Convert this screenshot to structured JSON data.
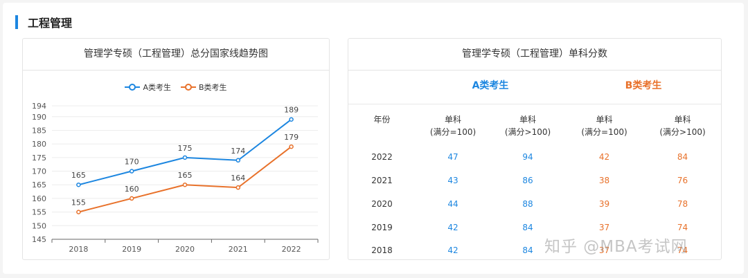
{
  "section_title": "工程管理",
  "left_card": {
    "title": "管理学专硕（工程管理）总分国家线趋势图"
  },
  "right_card": {
    "title": "管理学专硕（工程管理）单科分数"
  },
  "colors": {
    "series_a": "#1c86e0",
    "series_b": "#e8712a",
    "accent": "#1c86e0"
  },
  "chart_data": {
    "type": "line",
    "categories": [
      "2018",
      "2019",
      "2020",
      "2021",
      "2022"
    ],
    "series": [
      {
        "name": "A类考生",
        "values": [
          165,
          170,
          175,
          174,
          189
        ]
      },
      {
        "name": "B类考生",
        "values": [
          155,
          160,
          165,
          164,
          179
        ]
      }
    ],
    "y_ticks": [
      145,
      150,
      155,
      160,
      165,
      170,
      175,
      180,
      185,
      190,
      194
    ],
    "ylim": [
      145,
      194
    ],
    "legend_position": "top-center",
    "grid": true
  },
  "score_table": {
    "groups": {
      "a": "A类考生",
      "b": "B类考生"
    },
    "headers": {
      "year": "年份",
      "col1": [
        "单科",
        "(满分=100)"
      ],
      "col2": [
        "单科",
        "(满分>100)"
      ],
      "col3": [
        "单科",
        "(满分=100)"
      ],
      "col4": [
        "单科",
        "(满分>100)"
      ]
    },
    "rows": [
      {
        "year": "2022",
        "a1": "47",
        "a2": "94",
        "b1": "42",
        "b2": "84"
      },
      {
        "year": "2021",
        "a1": "43",
        "a2": "86",
        "b1": "38",
        "b2": "76"
      },
      {
        "year": "2020",
        "a1": "44",
        "a2": "88",
        "b1": "39",
        "b2": "78"
      },
      {
        "year": "2019",
        "a1": "42",
        "a2": "84",
        "b1": "37",
        "b2": "74"
      },
      {
        "year": "2018",
        "a1": "42",
        "a2": "84",
        "b1": "37",
        "b2": "74"
      }
    ]
  },
  "watermark": "知乎 @MBA考试网"
}
